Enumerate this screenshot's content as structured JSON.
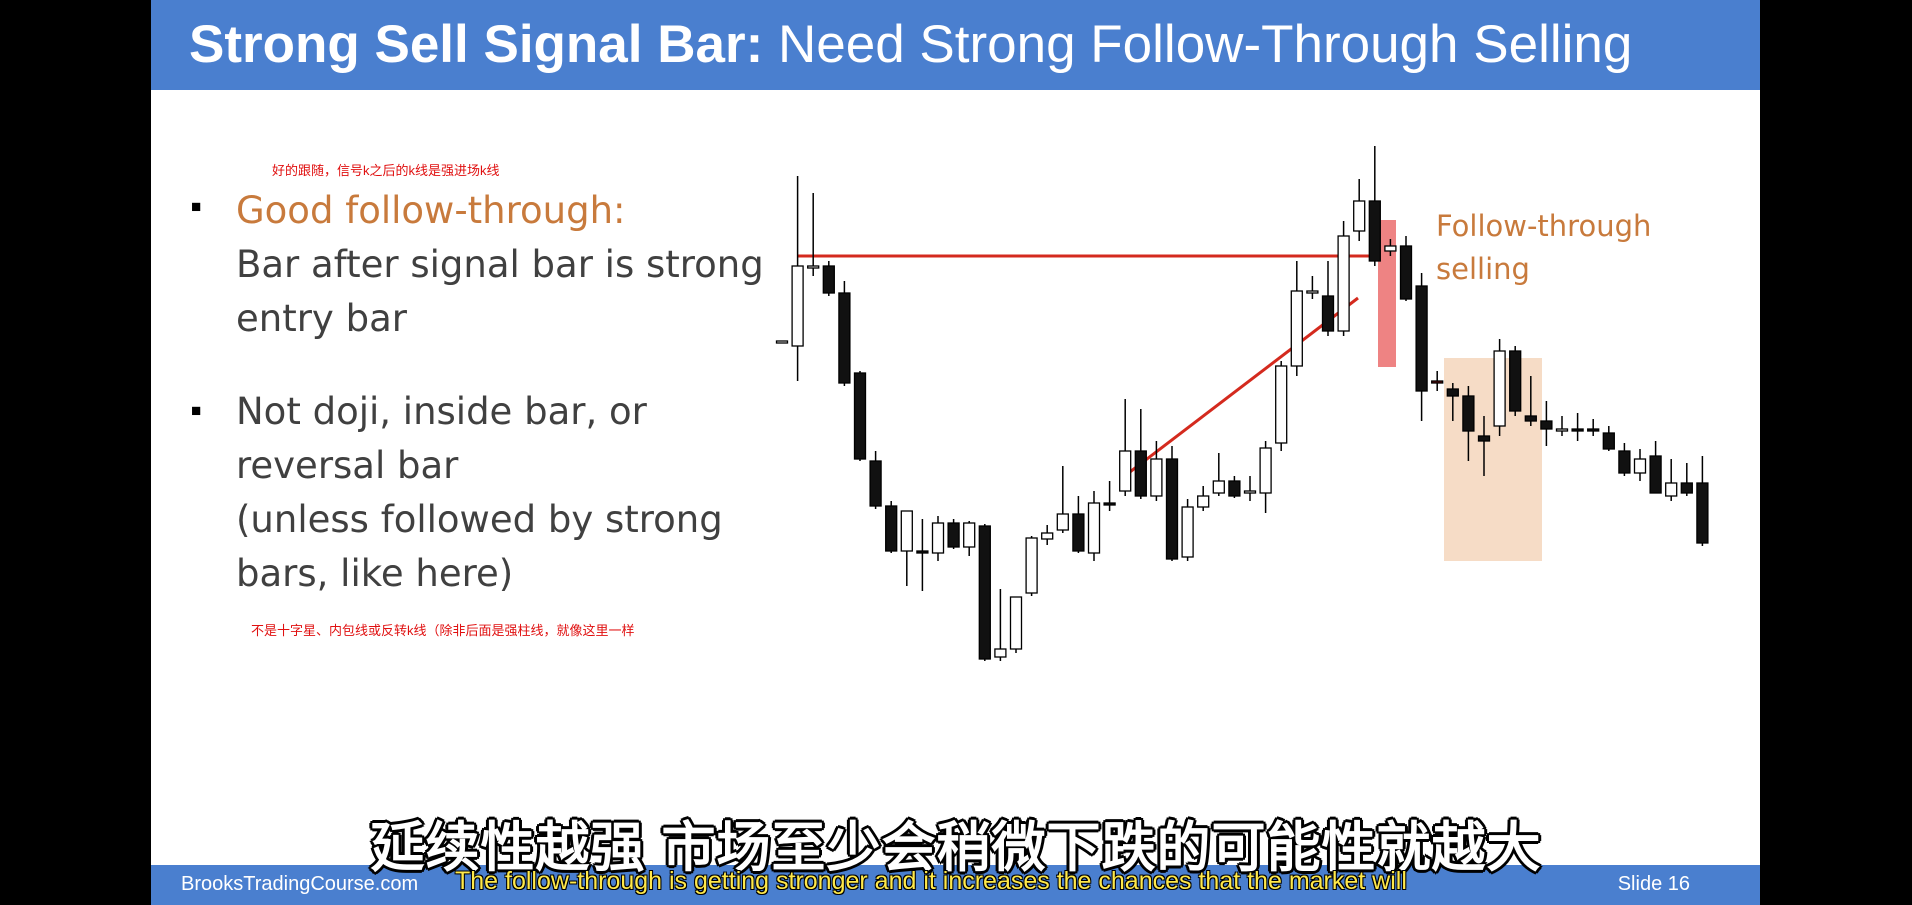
{
  "slide": {
    "title_bold": "Strong Sell Signal Bar:",
    "title_rest": "Need Strong Follow-Through Selling",
    "note_top_cn": "好的跟随，信号k之后的k线是强进场k线",
    "bullet1_heading": "Good follow-through:",
    "bullet1_line1": "Bar after signal bar is strong",
    "bullet1_line2": "entry bar",
    "bullet2_line1": "Not doji, inside bar, or",
    "bullet2_line2": "reversal bar",
    "bullet2_line3": "(unless followed by strong",
    "bullet2_line4": "bars, like here)",
    "note_bottom_cn": "不是十字星、内包线或反转k线（除非后面是强柱线，就像这里一样",
    "ft_label_line1": "Follow-through",
    "ft_label_line2": "selling",
    "footer_site": "BrooksTradingCourse.com",
    "footer_slide": "Slide  16"
  },
  "subtitles": {
    "cn": "延续性越强 市场至少会稍微下跌的可能性就越大",
    "en": "The follow-through is getting stronger  and it increases the chances that the market will"
  },
  "colors": {
    "header": "#4a7fcf",
    "accent_orange": "#c87a3c",
    "trend_line": "#d42a1e",
    "signal_highlight": "#e85a5a",
    "follow_through_box": "#f6dcc6"
  },
  "chart_data": {
    "type": "candlestick",
    "bars": [
      {
        "o": 420,
        "h": 420,
        "l": 420,
        "c": 420
      },
      {
        "o": 425,
        "h": 255,
        "l": 460,
        "c": 345
      },
      {
        "o": 345,
        "h": 272,
        "l": 355,
        "c": 345
      },
      {
        "o": 345,
        "h": 340,
        "l": 375,
        "c": 372
      },
      {
        "o": 372,
        "h": 360,
        "l": 465,
        "c": 462
      },
      {
        "o": 452,
        "h": 450,
        "l": 540,
        "c": 538
      },
      {
        "o": 540,
        "h": 530,
        "l": 588,
        "c": 585
      },
      {
        "o": 585,
        "h": 580,
        "l": 632,
        "c": 630
      },
      {
        "o": 630,
        "h": 595,
        "l": 665,
        "c": 590
      },
      {
        "o": 630,
        "h": 598,
        "l": 670,
        "c": 632
      },
      {
        "o": 632,
        "h": 595,
        "l": 640,
        "c": 602
      },
      {
        "o": 602,
        "h": 598,
        "l": 628,
        "c": 626
      },
      {
        "o": 626,
        "h": 600,
        "l": 635,
        "c": 602
      },
      {
        "o": 605,
        "h": 603,
        "l": 740,
        "c": 738
      },
      {
        "o": 736,
        "h": 668,
        "l": 740,
        "c": 728
      },
      {
        "o": 728,
        "h": 680,
        "l": 732,
        "c": 676
      },
      {
        "o": 672,
        "h": 615,
        "l": 675,
        "c": 617
      },
      {
        "o": 618,
        "h": 604,
        "l": 624,
        "c": 612
      },
      {
        "o": 609,
        "h": 545,
        "l": 612,
        "c": 593
      },
      {
        "o": 593,
        "h": 575,
        "l": 632,
        "c": 630
      },
      {
        "o": 632,
        "h": 570,
        "l": 640,
        "c": 582
      },
      {
        "o": 582,
        "h": 560,
        "l": 590,
        "c": 584
      },
      {
        "o": 570,
        "h": 478,
        "l": 575,
        "c": 530
      },
      {
        "o": 530,
        "h": 488,
        "l": 578,
        "c": 575
      },
      {
        "o": 575,
        "h": 520,
        "l": 580,
        "c": 538
      },
      {
        "o": 538,
        "h": 525,
        "l": 640,
        "c": 638
      },
      {
        "o": 636,
        "h": 578,
        "l": 640,
        "c": 586
      },
      {
        "o": 586,
        "h": 565,
        "l": 590,
        "c": 575
      },
      {
        "o": 572,
        "h": 532,
        "l": 575,
        "c": 560
      },
      {
        "o": 560,
        "h": 555,
        "l": 577,
        "c": 575
      },
      {
        "o": 570,
        "h": 555,
        "l": 580,
        "c": 570
      },
      {
        "o": 572,
        "h": 520,
        "l": 592,
        "c": 527
      },
      {
        "o": 522,
        "h": 440,
        "l": 530,
        "c": 445
      },
      {
        "o": 445,
        "h": 340,
        "l": 455,
        "c": 370
      },
      {
        "o": 370,
        "h": 355,
        "l": 378,
        "c": 370
      },
      {
        "o": 375,
        "h": 340,
        "l": 415,
        "c": 410
      },
      {
        "o": 410,
        "h": 300,
        "l": 415,
        "c": 315
      },
      {
        "o": 310,
        "h": 258,
        "l": 320,
        "c": 280
      },
      {
        "o": 280,
        "h": 225,
        "l": 345,
        "c": 340
      },
      {
        "o": 330,
        "h": 318,
        "l": 335,
        "c": 325
      },
      {
        "o": 325,
        "h": 315,
        "l": 380,
        "c": 378
      },
      {
        "o": 365,
        "h": 352,
        "l": 500,
        "c": 470
      },
      {
        "o": 460,
        "h": 450,
        "l": 470,
        "c": 460
      },
      {
        "o": 468,
        "h": 462,
        "l": 500,
        "c": 475
      },
      {
        "o": 475,
        "h": 465,
        "l": 540,
        "c": 510
      },
      {
        "o": 515,
        "h": 495,
        "l": 555,
        "c": 520
      },
      {
        "o": 505,
        "h": 418,
        "l": 515,
        "c": 430
      },
      {
        "o": 430,
        "h": 425,
        "l": 495,
        "c": 490
      },
      {
        "o": 495,
        "h": 455,
        "l": 505,
        "c": 500
      },
      {
        "o": 500,
        "h": 480,
        "l": 525,
        "c": 508
      },
      {
        "o": 508,
        "h": 495,
        "l": 515,
        "c": 508
      },
      {
        "o": 508,
        "h": 492,
        "l": 520,
        "c": 510
      },
      {
        "o": 508,
        "h": 498,
        "l": 515,
        "c": 510
      },
      {
        "o": 512,
        "h": 505,
        "l": 530,
        "c": 528
      },
      {
        "o": 530,
        "h": 522,
        "l": 555,
        "c": 552
      },
      {
        "o": 552,
        "h": 528,
        "l": 560,
        "c": 538
      },
      {
        "o": 535,
        "h": 520,
        "l": 570,
        "c": 572
      },
      {
        "o": 575,
        "h": 538,
        "l": 580,
        "c": 562
      },
      {
        "o": 562,
        "h": 542,
        "l": 575,
        "c": 572
      },
      {
        "o": 562,
        "h": 535,
        "l": 625,
        "c": 622
      }
    ],
    "signal_bar_index": 42,
    "follow_through_range": [
      46,
      50
    ]
  }
}
